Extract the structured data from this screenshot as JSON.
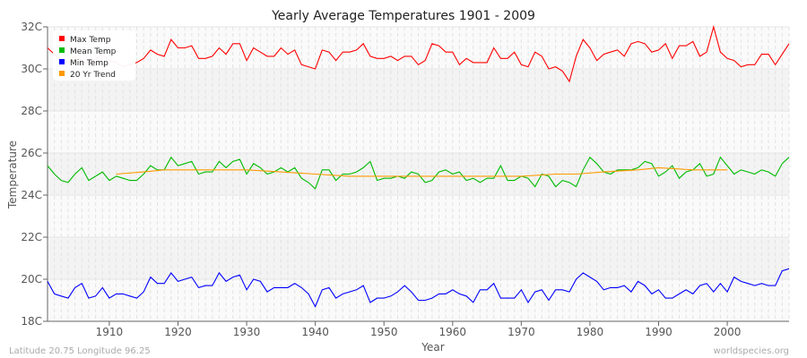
{
  "chart_data": {
    "type": "line",
    "title": "Yearly Average Temperatures 1901 - 2009",
    "xlabel": "Year",
    "ylabel": "Temperature",
    "xlim": [
      1901,
      2009
    ],
    "ylim": [
      18,
      32
    ],
    "x_ticks": [
      1910,
      1920,
      1930,
      1940,
      1950,
      1960,
      1970,
      1980,
      1990,
      2000
    ],
    "y_ticks": [
      {
        "value": 18,
        "label": "18C"
      },
      {
        "value": 20,
        "label": "20C"
      },
      {
        "value": 22,
        "label": "22C"
      },
      {
        "value": 24,
        "label": "24C"
      },
      {
        "value": 26,
        "label": "26C"
      },
      {
        "value": 28,
        "label": "28C"
      },
      {
        "value": 30,
        "label": "30C"
      },
      {
        "value": 32,
        "label": "32C"
      }
    ],
    "legend_position": "top-left",
    "series": [
      {
        "name": "Max Temp",
        "color": "#ff0000",
        "start_year": 1901,
        "values": [
          31.0,
          30.7,
          30.5,
          30.3,
          30.6,
          30.4,
          30.2,
          30.5,
          30.7,
          30.4,
          30.3,
          30.1,
          30.2,
          30.3,
          30.5,
          30.9,
          30.7,
          30.6,
          31.4,
          31.0,
          31.0,
          31.1,
          30.5,
          30.5,
          30.6,
          31.0,
          30.7,
          31.2,
          31.2,
          30.4,
          31.0,
          30.8,
          30.6,
          30.6,
          31.0,
          30.7,
          30.9,
          30.2,
          30.1,
          30.0,
          30.9,
          30.8,
          30.4,
          30.8,
          30.8,
          30.9,
          31.2,
          30.6,
          30.5,
          30.5,
          30.6,
          30.4,
          30.6,
          30.6,
          30.2,
          30.4,
          31.2,
          31.1,
          30.8,
          30.8,
          30.2,
          30.5,
          30.3,
          30.3,
          30.3,
          31.0,
          30.5,
          30.5,
          30.8,
          30.2,
          30.1,
          30.8,
          30.6,
          30.0,
          30.1,
          29.9,
          29.4,
          30.6,
          31.4,
          31.0,
          30.4,
          30.7,
          30.8,
          30.9,
          30.6,
          31.2,
          31.3,
          31.2,
          30.8,
          30.9,
          31.2,
          30.5,
          31.1,
          31.1,
          31.3,
          30.6,
          30.8,
          32.0,
          30.8,
          30.5,
          30.4,
          30.1,
          30.2,
          30.2,
          30.7,
          30.7,
          30.2,
          30.7,
          31.2
        ]
      },
      {
        "name": "Mean Temp",
        "color": "#00bb00",
        "start_year": 1901,
        "values": [
          25.4,
          25.0,
          24.7,
          24.6,
          25.0,
          25.3,
          24.7,
          24.9,
          25.1,
          24.7,
          24.9,
          24.8,
          24.7,
          24.7,
          25.0,
          25.4,
          25.2,
          25.2,
          25.8,
          25.4,
          25.5,
          25.6,
          25.0,
          25.1,
          25.1,
          25.6,
          25.3,
          25.6,
          25.7,
          25.0,
          25.5,
          25.3,
          25.0,
          25.1,
          25.3,
          25.1,
          25.3,
          24.8,
          24.6,
          24.3,
          25.2,
          25.2,
          24.7,
          25.0,
          25.0,
          25.1,
          25.3,
          25.6,
          24.7,
          24.8,
          24.8,
          24.9,
          24.8,
          25.1,
          25.0,
          24.6,
          24.7,
          25.1,
          25.2,
          25.0,
          25.1,
          24.7,
          24.8,
          24.6,
          24.8,
          24.8,
          25.4,
          24.7,
          24.7,
          24.9,
          24.8,
          24.4,
          25.0,
          24.9,
          24.4,
          24.7,
          24.6,
          24.4,
          25.2,
          25.8,
          25.5,
          25.1,
          25.0,
          25.2,
          25.2,
          25.2,
          25.3,
          25.6,
          25.5,
          24.9,
          25.1,
          25.4,
          24.8,
          25.1,
          25.2,
          25.5,
          24.9,
          25.0,
          25.8,
          25.4,
          25.0,
          25.2,
          25.1,
          25.0,
          25.2,
          25.1,
          24.9,
          25.5,
          25.8
        ]
      },
      {
        "name": "Min Temp",
        "color": "#0000ff",
        "start_year": 1901,
        "values": [
          19.9,
          19.3,
          19.2,
          19.1,
          19.6,
          19.8,
          19.1,
          19.2,
          19.6,
          19.1,
          19.3,
          19.3,
          19.2,
          19.1,
          19.4,
          20.1,
          19.8,
          19.8,
          20.3,
          19.9,
          20.0,
          20.1,
          19.6,
          19.7,
          19.7,
          20.3,
          19.9,
          20.1,
          20.2,
          19.5,
          20.0,
          19.9,
          19.4,
          19.6,
          19.6,
          19.6,
          19.8,
          19.6,
          19.3,
          18.7,
          19.5,
          19.6,
          19.1,
          19.3,
          19.4,
          19.5,
          19.7,
          18.9,
          19.1,
          19.1,
          19.2,
          19.4,
          19.7,
          19.4,
          19.0,
          19.0,
          19.1,
          19.3,
          19.3,
          19.5,
          19.3,
          19.2,
          18.9,
          19.5,
          19.5,
          19.8,
          19.1,
          19.1,
          19.1,
          19.5,
          18.9,
          19.4,
          19.5,
          19.0,
          19.5,
          19.5,
          19.4,
          20.0,
          20.3,
          20.1,
          19.9,
          19.5,
          19.6,
          19.6,
          19.7,
          19.4,
          19.9,
          19.7,
          19.3,
          19.5,
          19.1,
          19.1,
          19.3,
          19.5,
          19.3,
          19.7,
          19.8,
          19.4,
          19.8,
          19.4,
          20.1,
          19.9,
          19.8,
          19.7,
          19.8,
          19.7,
          19.7,
          20.4,
          20.5
        ]
      },
      {
        "name": "20 Yr Trend",
        "color": "#ff9900",
        "points": [
          [
            1911,
            25.0
          ],
          [
            1915,
            25.1
          ],
          [
            1918,
            25.2
          ],
          [
            1925,
            25.2
          ],
          [
            1930,
            25.2
          ],
          [
            1935,
            25.1
          ],
          [
            1940,
            25.0
          ],
          [
            1945,
            24.9
          ],
          [
            1955,
            24.9
          ],
          [
            1965,
            24.9
          ],
          [
            1970,
            24.9
          ],
          [
            1975,
            25.0
          ],
          [
            1978,
            25.0
          ],
          [
            1982,
            25.1
          ],
          [
            1987,
            25.2
          ],
          [
            1990,
            25.3
          ],
          [
            1995,
            25.2
          ],
          [
            2000,
            25.2
          ]
        ]
      }
    ]
  },
  "footer": {
    "location": "Latitude 20.75 Longitude 96.25",
    "source": "worldspecies.org"
  }
}
